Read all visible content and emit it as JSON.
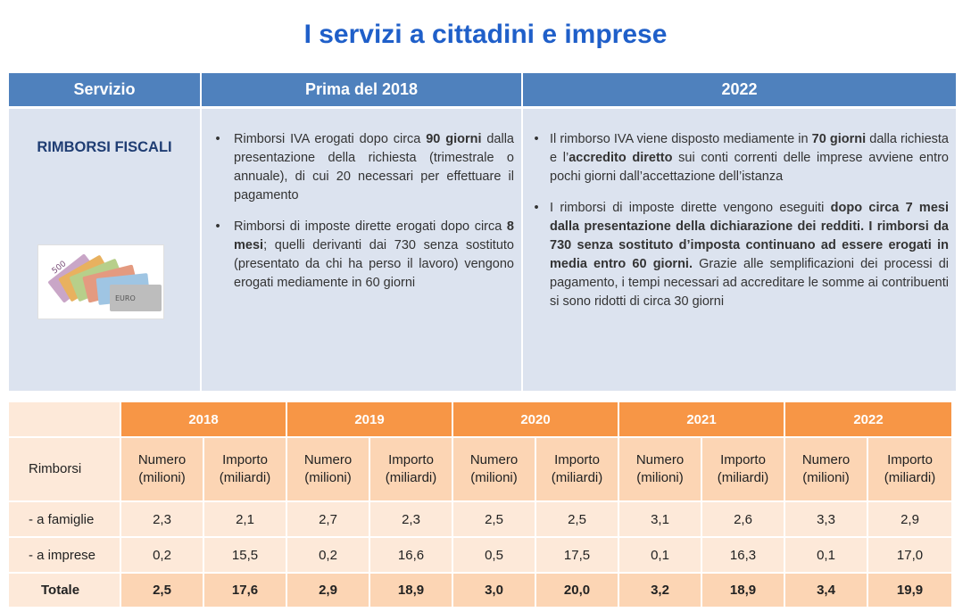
{
  "title": "I servizi a cittadini e imprese",
  "top_table": {
    "headers": [
      "Servizio",
      "Prima del 2018",
      "2022"
    ],
    "service": "RIMBORSI FISCALI",
    "image_icon": "euro-banknotes-icon",
    "before_2018": [
      [
        {
          "t": "Rimborsi IVA erogati dopo circa ",
          "b": false
        },
        {
          "t": "90 giorni",
          "b": true
        },
        {
          "t": " dalla presentazione della richiesta (trimestrale o annuale), di cui 20 necessari per effettuare il pagamento",
          "b": false
        }
      ],
      [
        {
          "t": "Rimborsi di imposte dirette erogati dopo circa ",
          "b": false
        },
        {
          "t": "8 mesi",
          "b": true
        },
        {
          "t": "; quelli derivanti dai 730 senza sostituto (presentato da chi ha perso il lavoro) vengono erogati mediamente in 60 giorni",
          "b": false
        }
      ]
    ],
    "y2022": [
      [
        {
          "t": "Il rimborso IVA viene disposto mediamente in ",
          "b": false
        },
        {
          "t": "70 giorni",
          "b": true
        },
        {
          "t": " dalla richiesta e l’",
          "b": false
        },
        {
          "t": "accredito diretto",
          "b": true
        },
        {
          "t": " sui conti correnti delle imprese avviene entro pochi giorni dall’accettazione dell’istanza",
          "b": false
        }
      ],
      [
        {
          "t": "I rimborsi di imposte dirette vengono eseguiti ",
          "b": false
        },
        {
          "t": "dopo circa 7 mesi dalla presentazione della dichiarazione dei redditi. I rimborsi da 730 senza sostituto d’imposta continuano ad essere erogati in media entro 60 giorni.",
          "b": true
        },
        {
          "t": " Grazie alle semplificazioni dei processi di pagamento, i tempi necessari ad accreditare le somme ai contribuenti si sono ridotti di circa 30 giorni",
          "b": false
        }
      ]
    ]
  },
  "bottom_table": {
    "years": [
      "2018",
      "2019",
      "2020",
      "2021",
      "2022"
    ],
    "row_header": "Rimborsi",
    "sub_headers": [
      "Numero\n(milioni)",
      "Importo\n(miliardi)"
    ],
    "rows": [
      {
        "label": "- a famiglie",
        "values": [
          "2,3",
          "2,1",
          "2,7",
          "2,3",
          "2,5",
          "2,5",
          "3,1",
          "2,6",
          "3,3",
          "2,9"
        ],
        "bold": false
      },
      {
        "label": "- a imprese",
        "values": [
          "0,2",
          "15,5",
          "0,2",
          "16,6",
          "0,5",
          "17,5",
          "0,1",
          "16,3",
          "0,1",
          "17,0"
        ],
        "bold": false
      },
      {
        "label": "Totale",
        "values": [
          "2,5",
          "17,6",
          "2,9",
          "18,9",
          "3,0",
          "20,0",
          "3,2",
          "18,9",
          "3,4",
          "19,9"
        ],
        "bold": true
      }
    ]
  },
  "colors": {
    "title": "#1f5fc9",
    "top_header": "#4f81bd",
    "top_body": "#dce3ef",
    "year_header": "#f79646",
    "sub_header": "#fcd5b4",
    "cell": "#fde9d9"
  }
}
